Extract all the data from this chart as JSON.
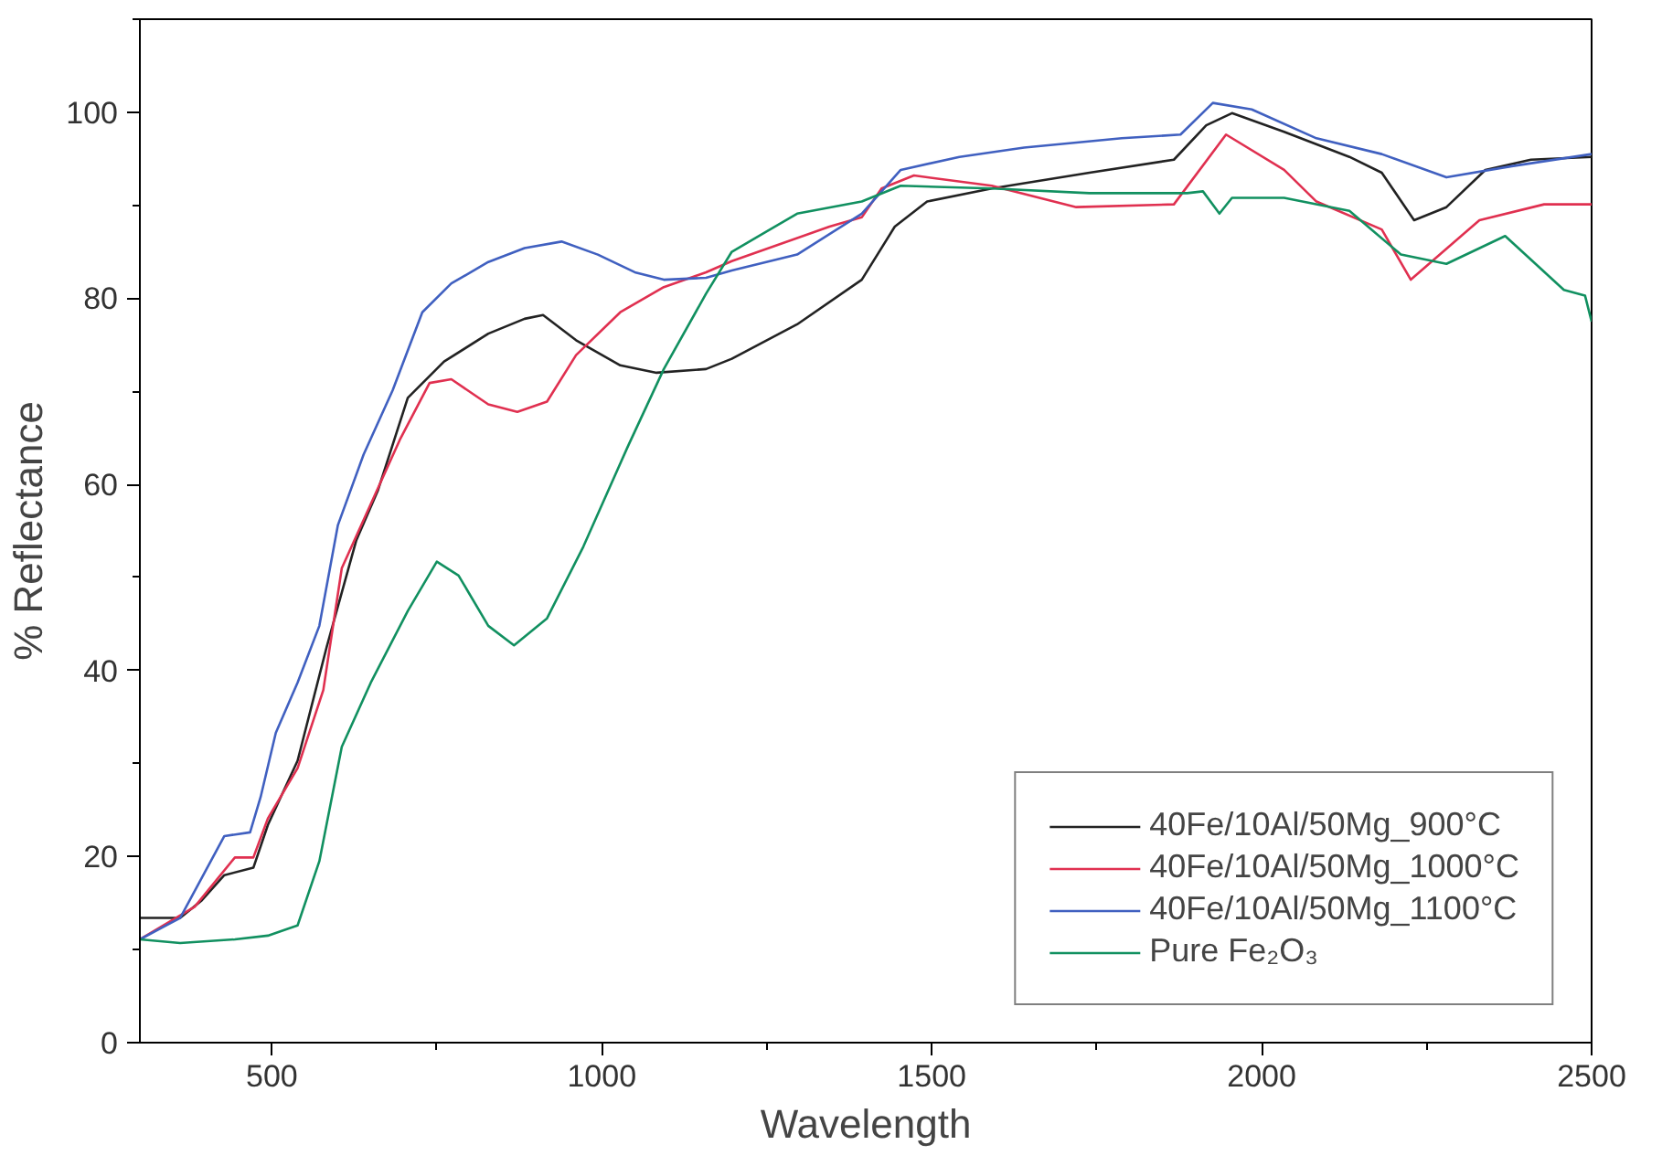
{
  "chart_data": {
    "type": "line",
    "xlabel": "Wavelength",
    "ylabel": "% Reflectance",
    "xlim": [
      300,
      2500
    ],
    "ylim": [
      0,
      110
    ],
    "xticks": [
      500,
      1000,
      1500,
      2000,
      2500
    ],
    "yticks": [
      0,
      20,
      40,
      60,
      80,
      100
    ],
    "legend": "bottom right",
    "grid": false,
    "marker": "none",
    "line_style": "solid",
    "series": [
      {
        "name": "40Fe/10Al/50Mg_900°C",
        "color": "#222222",
        "x": [
          300,
          361,
          394,
          428,
          472,
          494,
          539,
          583,
          628,
          661,
          706,
          761,
          828,
          883,
          911,
          961,
          1028,
          1083,
          1158,
          1197,
          1296,
          1394,
          1444,
          1493,
          1591,
          1739,
          1867,
          1916,
          1955,
          2034,
          2133,
          2182,
          2231,
          2280,
          2339,
          2408,
          2500
        ],
        "values": [
          13.4,
          13.4,
          15.3,
          18,
          18.8,
          23.4,
          30.3,
          42.5,
          54,
          59.4,
          69.3,
          73.2,
          76.2,
          77.8,
          78.2,
          75.5,
          72.8,
          72,
          72.4,
          73.5,
          77.2,
          82,
          87.7,
          90.4,
          91.8,
          93.5,
          94.9,
          98.6,
          99.9,
          97.9,
          95.2,
          93.5,
          88.4,
          89.8,
          93.8,
          94.9,
          95.2
        ]
      },
      {
        "name": "40Fe/10Al/50Mg_1000°C",
        "color": "#e03050",
        "x": [
          300,
          383,
          444,
          472,
          494,
          539,
          578,
          606,
          650,
          694,
          739,
          772,
          828,
          872,
          917,
          961,
          1028,
          1094,
          1158,
          1197,
          1345,
          1394,
          1424,
          1473,
          1591,
          1719,
          1867,
          1946,
          2034,
          2083,
          2182,
          2226,
          2330,
          2428,
          2500
        ],
        "values": [
          11.1,
          14.6,
          19.9,
          19.9,
          24.1,
          29.5,
          37.9,
          51,
          57.9,
          64.8,
          70.9,
          71.3,
          68.6,
          67.8,
          68.9,
          73.9,
          78.5,
          81.2,
          82.8,
          84,
          87.7,
          88.7,
          91.8,
          93.2,
          92.1,
          89.8,
          90.1,
          97.6,
          93.8,
          90.4,
          87.4,
          82,
          88.4,
          90.1,
          90.1
        ]
      },
      {
        "name": "40Fe/10Al/50Mg_1100°C",
        "color": "#4060c0",
        "x": [
          300,
          361,
          428,
          467,
          483,
          506,
          539,
          572,
          600,
          639,
          683,
          728,
          772,
          828,
          883,
          939,
          994,
          1050,
          1094,
          1158,
          1197,
          1296,
          1394,
          1453,
          1542,
          1640,
          1788,
          1877,
          1926,
          1985,
          2083,
          2182,
          2280,
          2379,
          2500
        ],
        "values": [
          11.1,
          13.4,
          22.2,
          22.6,
          26.4,
          33.3,
          38.7,
          44.8,
          55.6,
          63.2,
          70.1,
          78.5,
          81.6,
          83.9,
          85.4,
          86.1,
          84.7,
          82.8,
          82,
          82.2,
          83,
          84.7,
          89.1,
          93.8,
          95.2,
          96.2,
          97.2,
          97.6,
          101,
          100.3,
          97.2,
          95.5,
          93,
          94.2,
          95.5
        ]
      },
      {
        "name": "Pure Fe₂O₃",
        "color": "#119060",
        "x": [
          300,
          361,
          444,
          494,
          539,
          572,
          606,
          650,
          706,
          750,
          783,
          828,
          867,
          917,
          972,
          1039,
          1094,
          1158,
          1197,
          1296,
          1394,
          1453,
          1591,
          1739,
          1887,
          1911,
          1936,
          1955,
          2034,
          2133,
          2211,
          2280,
          2369,
          2458,
          2490,
          2500
        ],
        "values": [
          11.1,
          10.7,
          11.1,
          11.5,
          12.6,
          19.5,
          31.8,
          38.7,
          46.4,
          51.7,
          50.2,
          44.8,
          42.7,
          45.6,
          53.3,
          64,
          72.4,
          80.5,
          85,
          89.1,
          90.4,
          92.1,
          91.8,
          91.3,
          91.3,
          91.5,
          89.1,
          90.8,
          90.8,
          89.4,
          84.7,
          83.7,
          86.7,
          80.9,
          80.3,
          77.5
        ]
      }
    ]
  }
}
